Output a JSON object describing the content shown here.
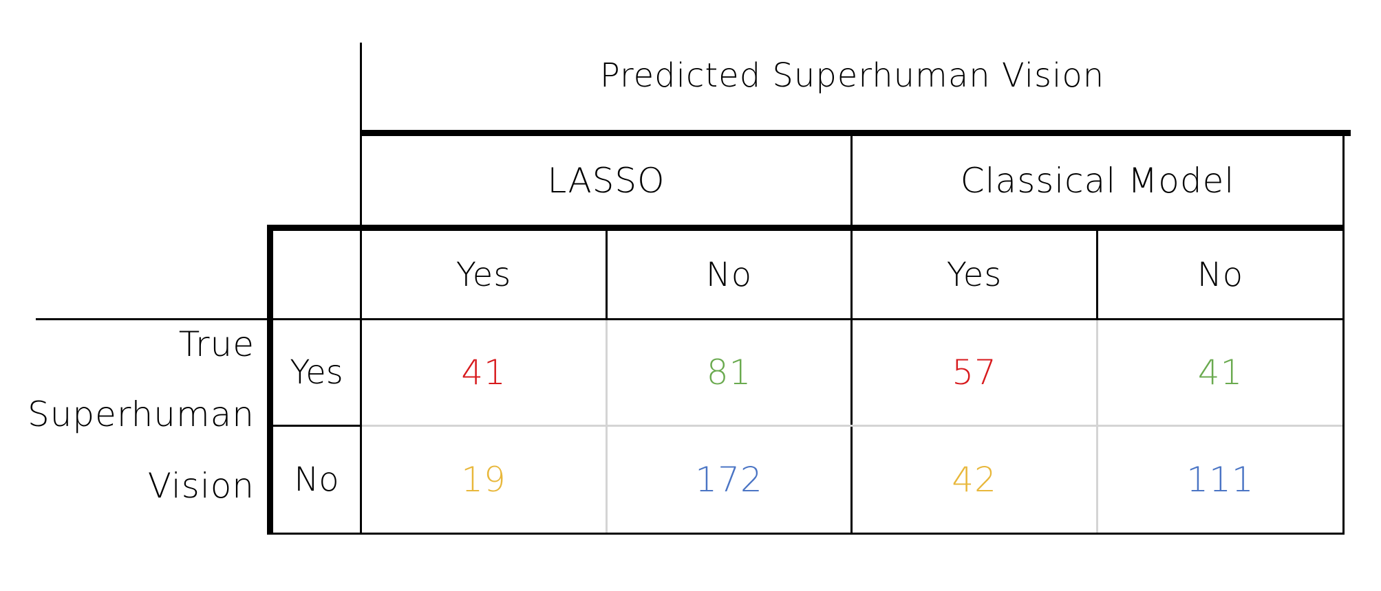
{
  "header": {
    "title": "Predicted Superhuman Vision",
    "models": [
      "LASSO",
      "Classical Model"
    ],
    "predicted_labels": [
      "Yes",
      "No",
      "Yes",
      "No"
    ]
  },
  "rows": {
    "axis_label_lines": [
      "True",
      "Superhuman",
      "Vision"
    ],
    "labels": [
      "Yes",
      "No"
    ]
  },
  "cells": {
    "lasso": {
      "true_yes_pred_yes": "41",
      "true_yes_pred_no": "81",
      "true_no_pred_yes": "19",
      "true_no_pred_no": "172"
    },
    "classical": {
      "true_yes_pred_yes": "57",
      "true_yes_pred_no": "41",
      "true_no_pred_yes": "42",
      "true_no_pred_no": "111"
    }
  },
  "colors": {
    "true_positive": "#d7191c",
    "false_negative": "#6aaa4f",
    "false_positive": "#e8b73a",
    "true_negative": "#4a74c4",
    "grid_light": "#d4d4d4"
  }
}
